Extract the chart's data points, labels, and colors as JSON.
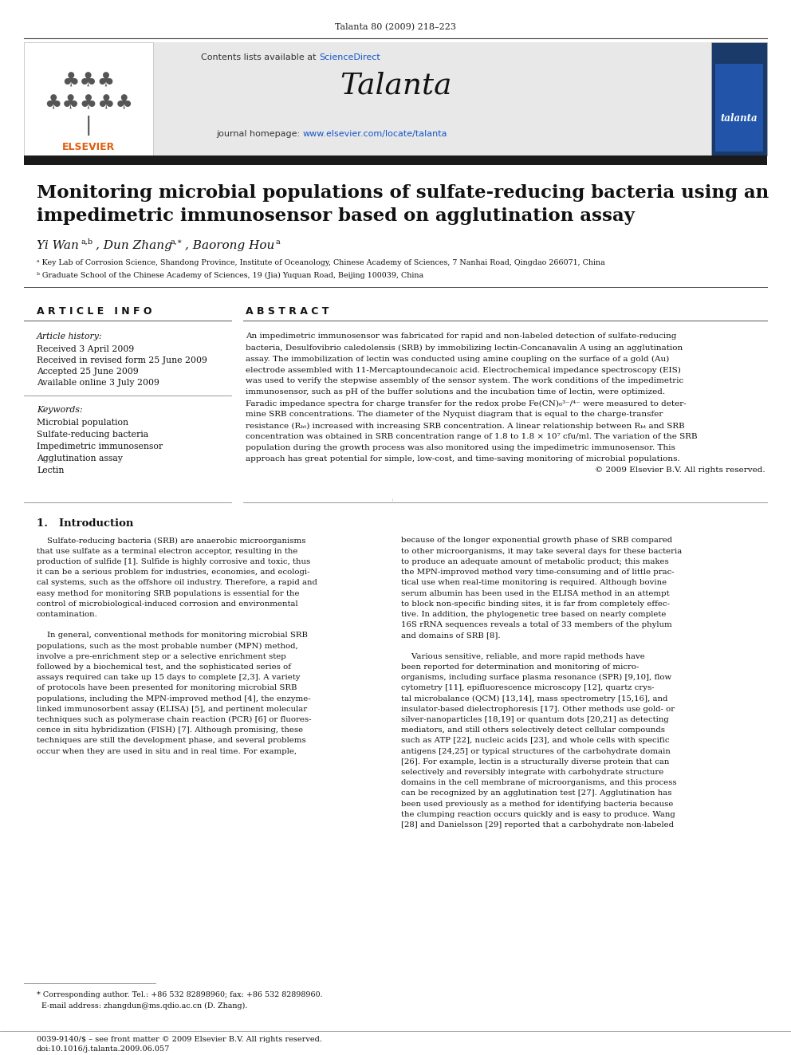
{
  "page_header": "Talanta 80 (2009) 218–223",
  "journal_name": "Talanta",
  "contents_line": "Contents lists available at ScienceDirect",
  "journal_homepage": "journal homepage: www.elsevier.com/locate/talanta",
  "paper_title_line1": "Monitoring microbial populations of sulfate-reducing bacteria using an",
  "paper_title_line2": "impedimetric immunosensor based on agglutination assay",
  "affiliation_a": "ᵃ Key Lab of Corrosion Science, Shandong Province, Institute of Oceanology, Chinese Academy of Sciences, 7 Nanhai Road, Qingdao 266071, China",
  "affiliation_b": "ᵇ Graduate School of the Chinese Academy of Sciences, 19 (Jia) Yuquan Road, Beijing 100039, China",
  "article_info_header": "A R T I C L E   I N F O",
  "abstract_header": "A B S T R A C T",
  "article_history_label": "Article history:",
  "received": "Received 3 April 2009",
  "received_revised": "Received in revised form 25 June 2009",
  "accepted": "Accepted 25 June 2009",
  "available": "Available online 3 July 2009",
  "keywords_label": "Keywords:",
  "keywords": [
    "Microbial population",
    "Sulfate-reducing bacteria",
    "Impedimetric immunosensor",
    "Agglutination assay",
    "Lectin"
  ],
  "abstract_lines": [
    "An impedimetric immunosensor was fabricated for rapid and non-labeled detection of sulfate-reducing",
    "bacteria, Desulfovibrio caledolensis (SRB) by immobilizing lectin-Concanavalin A using an agglutination",
    "assay. The immobilization of lectin was conducted using amine coupling on the surface of a gold (Au)",
    "electrode assembled with 11-Mercaptoundecanoic acid. Electrochemical impedance spectroscopy (EIS)",
    "was used to verify the stepwise assembly of the sensor system. The work conditions of the impedimetric",
    "immunosensor, such as pH of the buffer solutions and the incubation time of lectin, were optimized.",
    "Faradic impedance spectra for charge transfer for the redox probe Fe(CN)₆³⁻/⁴⁻ were measured to deter-",
    "mine SRB concentrations. The diameter of the Nyquist diagram that is equal to the charge-transfer",
    "resistance (Rₕₜ) increased with increasing SRB concentration. A linear relationship between Rₕₜ and SRB",
    "concentration was obtained in SRB concentration range of 1.8 to 1.8 × 10⁷ cfu/ml. The variation of the SRB",
    "population during the growth process was also monitored using the impedimetric immunosensor. This",
    "approach has great potential for simple, low-cost, and time-saving monitoring of microbial populations.",
    "© 2009 Elsevier B.V. All rights reserved."
  ],
  "section1_title": "1.   Introduction",
  "col1_lines": [
    "    Sulfate-reducing bacteria (SRB) are anaerobic microorganisms",
    "that use sulfate as a terminal electron acceptor, resulting in the",
    "production of sulfide [1]. Sulfide is highly corrosive and toxic, thus",
    "it can be a serious problem for industries, economies, and ecologi-",
    "cal systems, such as the offshore oil industry. Therefore, a rapid and",
    "easy method for monitoring SRB populations is essential for the",
    "control of microbiological-induced corrosion and environmental",
    "contamination.",
    "",
    "    In general, conventional methods for monitoring microbial SRB",
    "populations, such as the most probable number (MPN) method,",
    "involve a pre-enrichment step or a selective enrichment step",
    "followed by a biochemical test, and the sophisticated series of",
    "assays required can take up 15 days to complete [2,3]. A variety",
    "of protocols have been presented for monitoring microbial SRB",
    "populations, including the MPN-improved method [4], the enzyme-",
    "linked immunosorbent assay (ELISA) [5], and pertinent molecular",
    "techniques such as polymerase chain reaction (PCR) [6] or fluores-",
    "cence in situ hybridization (FISH) [7]. Although promising, these",
    "techniques are still the development phase, and several problems",
    "occur when they are used in situ and in real time. For example,"
  ],
  "col2_lines": [
    "because of the longer exponential growth phase of SRB compared",
    "to other microorganisms, it may take several days for these bacteria",
    "to produce an adequate amount of metabolic product; this makes",
    "the MPN-improved method very time-consuming and of little prac-",
    "tical use when real-time monitoring is required. Although bovine",
    "serum albumin has been used in the ELISA method in an attempt",
    "to block non-specific binding sites, it is far from completely effec-",
    "tive. In addition, the phylogenetic tree based on nearly complete",
    "16S rRNA sequences reveals a total of 33 members of the phylum",
    "and domains of SRB [8].",
    "",
    "    Various sensitive, reliable, and more rapid methods have",
    "been reported for determination and monitoring of micro-",
    "organisms, including surface plasma resonance (SPR) [9,10], flow",
    "cytometry [11], epifluorescence microscopy [12], quartz crys-",
    "tal microbalance (QCM) [13,14], mass spectrometry [15,16], and",
    "insulator-based dielectrophoresis [17]. Other methods use gold- or",
    "silver-nanoparticles [18,19] or quantum dots [20,21] as detecting",
    "mediators, and still others selectively detect cellular compounds",
    "such as ATP [22], nucleic acids [23], and whole cells with specific",
    "antigens [24,25] or typical structures of the carbohydrate domain",
    "[26]. For example, lectin is a structurally diverse protein that can",
    "selectively and reversibly integrate with carbohydrate structure",
    "domains in the cell membrane of microorganisms, and this process",
    "can be recognized by an agglutination test [27]. Agglutination has",
    "been used previously as a method for identifying bacteria because",
    "the clumping reaction occurs quickly and is easy to produce. Wang",
    "[28] and Danielsson [29] reported that a carbohydrate non-labeled"
  ],
  "footnote_line1": "* Corresponding author. Tel.: +86 532 82898960; fax: +86 532 82898960.",
  "footnote_line2": "  E-mail address: zhangdun@ms.qdio.ac.cn (D. Zhang).",
  "footer_line1": "0039-9140/$ – see front matter © 2009 Elsevier B.V. All rights reserved.",
  "footer_line2": "doi:10.1016/j.talanta.2009.06.057",
  "bg_color": "#ffffff",
  "header_bg": "#e8e8e8",
  "dark_bar_color": "#1a1a1a",
  "blue_link_color": "#1155cc",
  "orange_elsevier_color": "#e06010",
  "text_color": "#000000"
}
